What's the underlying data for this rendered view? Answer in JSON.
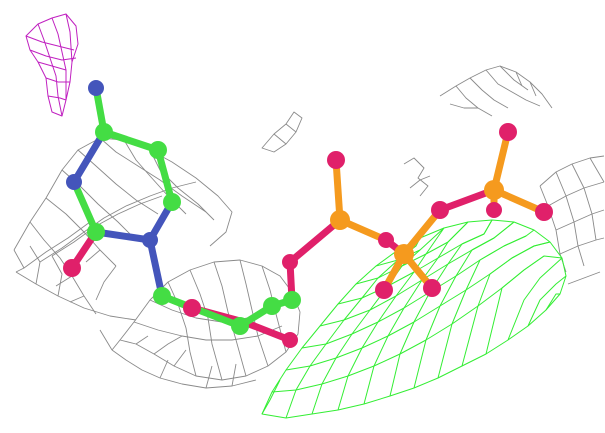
{
  "scene": {
    "subject": "nucleotide-triphosphate-electron-density",
    "colors": {
      "background": "#ffffff",
      "carbon": "#44dd44",
      "nitrogen": "#4455bb",
      "oxygen": "#e0206a",
      "phosphorus": "#f59a1e",
      "density_map": "#8a8a8a",
      "positive_difference_map": "#33ee33",
      "negative_difference_map": "#c020c0"
    }
  }
}
